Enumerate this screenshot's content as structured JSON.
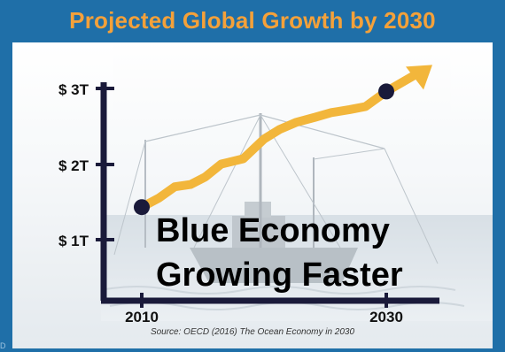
{
  "slide": {
    "title": "Projected Global Growth by 2030",
    "source": "Source: OECD (2016) The Ocean Economy in 2030",
    "overlay_line1": "Blue Economy",
    "overlay_line2": "Growing Faster",
    "corner_mark": "D",
    "colors": {
      "frame": "#1f6fa8",
      "title": "#f4a13a",
      "arrow": "#f2b63b",
      "axis": "#1a1a3a",
      "marker": "#1a1a3a"
    },
    "background_picture": "fishing-trawler-at-sea"
  },
  "chart_data": {
    "type": "line",
    "title": "Projected Global Growth by 2030",
    "xlabel": "",
    "ylabel": "",
    "x_tick_labels": [
      "2010",
      "2030"
    ],
    "y_tick_labels": [
      "$ 1T",
      "$ 2T",
      "$ 3T"
    ],
    "y_ticks": [
      1,
      2,
      3
    ],
    "xlim": [
      2010,
      2030
    ],
    "ylim": [
      0.35,
      3.2
    ],
    "series": [
      {
        "x": [
          2010,
          2011.4,
          2012.7,
          2014.0,
          2015.2,
          2016.5,
          2018.3,
          2020.0,
          2021.3,
          2022.6,
          2024.2,
          2025.5,
          2027.0,
          2028.3,
          2030
        ],
        "values": [
          1.43,
          1.55,
          1.7,
          1.73,
          1.83,
          2.0,
          2.07,
          2.33,
          2.46,
          2.55,
          2.62,
          2.68,
          2.72,
          2.76,
          2.96
        ]
      }
    ],
    "endpoints": [
      {
        "x": 2010,
        "y": 1.43
      },
      {
        "x": 2030,
        "y": 2.96
      }
    ],
    "arrow_extends": true,
    "grid": false
  }
}
